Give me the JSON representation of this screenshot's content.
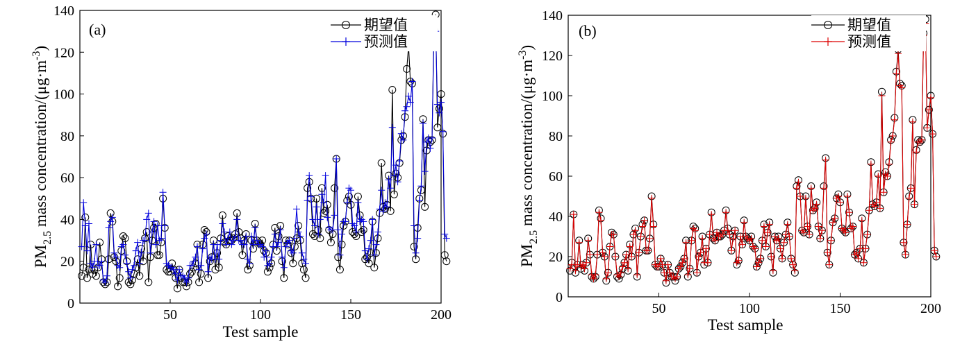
{
  "chart_data": [
    {
      "type": "line",
      "panel_label": "(a)",
      "xlabel": "Test sample",
      "ylabel_parts": {
        "base": "PM",
        "sub": "2.5",
        "rest": " mass concentration/(μg·m",
        "sup": "-3",
        "close": ")"
      },
      "xlim": [
        0,
        200
      ],
      "ylim": [
        0,
        140
      ],
      "xticks": [
        50,
        100,
        150,
        200
      ],
      "yticks": [
        0,
        20,
        40,
        60,
        80,
        100,
        120,
        140
      ],
      "grid": false,
      "legend_position": "top-right",
      "series": [
        {
          "name": "期望值",
          "color": "#000000",
          "marker": "circle",
          "values": [
            13,
            17,
            41,
            12,
            16,
            28,
            14,
            16,
            13,
            17,
            29,
            21,
            10,
            9,
            10,
            21,
            43,
            39,
            22,
            20,
            8,
            12,
            25,
            32,
            31,
            20,
            10,
            9,
            11,
            14,
            17,
            21,
            13,
            26,
            20,
            31,
            34,
            10,
            22,
            30,
            36,
            38,
            23,
            23,
            29,
            50,
            36,
            16,
            15,
            15,
            19,
            16,
            12,
            7,
            16,
            12,
            10,
            10,
            8,
            10,
            14,
            15,
            17,
            19,
            28,
            10,
            14,
            28,
            35,
            34,
            12,
            20,
            22,
            30,
            16,
            24,
            17,
            31,
            42,
            29,
            28,
            32,
            30,
            30,
            31,
            33,
            43,
            34,
            31,
            23,
            30,
            33,
            16,
            18,
            30,
            26,
            38,
            30,
            29,
            28,
            30,
            25,
            24,
            15,
            17,
            19,
            28,
            36,
            25,
            32,
            37,
            20,
            12,
            30,
            28,
            30,
            24,
            19,
            27,
            31,
            37,
            30,
            19,
            16,
            12,
            55,
            58,
            50,
            33,
            32,
            50,
            35,
            31,
            55,
            43,
            44,
            47,
            35,
            29,
            33,
            55,
            69,
            22,
            16,
            28,
            37,
            39,
            49,
            51,
            47,
            34,
            33,
            32,
            51,
            42,
            34,
            35,
            21,
            22,
            19,
            24,
            39,
            17,
            24,
            31,
            43,
            67,
            46,
            45,
            47,
            61,
            44,
            102,
            52,
            62,
            60,
            67,
            78,
            80,
            89,
            112,
            123,
            106,
            105,
            27,
            21,
            36,
            50,
            54,
            88,
            46,
            73,
            78,
            77,
            78,
            131,
            138,
            84,
            93,
            100,
            81,
            23,
            20
          ],
          "x_start": 1
        },
        {
          "name": "预测值",
          "color": "#0000dd",
          "marker": "plus",
          "values": [
            27,
            48,
            37,
            25,
            38,
            19,
            17,
            20,
            28,
            18,
            18,
            20,
            11,
            10,
            13,
            36,
            39,
            41,
            24,
            22,
            18,
            17,
            27,
            28,
            23,
            19,
            15,
            12,
            16,
            18,
            25,
            29,
            19,
            24,
            30,
            30,
            40,
            43,
            24,
            34,
            39,
            28,
            37,
            30,
            31,
            53,
            37,
            19,
            18,
            17,
            17,
            16,
            14,
            11,
            16,
            13,
            13,
            12,
            10,
            12,
            18,
            18,
            20,
            22,
            27,
            16,
            18,
            26,
            31,
            33,
            15,
            22,
            21,
            28,
            21,
            28,
            21,
            30,
            38,
            34,
            28,
            31,
            34,
            28,
            30,
            32,
            40,
            30,
            30,
            28,
            28,
            32,
            21,
            19,
            32,
            28,
            36,
            30,
            28,
            28,
            27,
            22,
            25,
            18,
            19,
            22,
            27,
            33,
            27,
            29,
            35,
            22,
            17,
            27,
            29,
            30,
            25,
            24,
            31,
            45,
            34,
            32,
            24,
            21,
            19,
            49,
            61,
            51,
            40,
            37,
            46,
            33,
            40,
            52,
            48,
            61,
            41,
            36,
            35,
            35,
            42,
            69,
            35,
            23,
            33,
            39,
            39,
            48,
            55,
            54,
            38,
            37,
            34,
            48,
            39,
            40,
            39,
            25,
            21,
            26,
            30,
            40,
            23,
            28,
            34,
            45,
            54,
            44,
            48,
            46,
            59,
            55,
            84,
            61,
            66,
            58,
            68,
            81,
            78,
            92,
            94,
            99,
            96,
            106,
            37,
            24,
            31,
            49,
            56,
            86,
            63,
            77,
            79,
            74,
            79,
            126,
            130,
            95,
            91,
            96,
            82,
            33,
            31
          ],
          "x_start": 1
        }
      ]
    },
    {
      "type": "line",
      "panel_label": "(b)",
      "xlabel": "Test sample",
      "ylabel_parts": {
        "base": "PM",
        "sub": "2.5",
        "rest": " mass concentration/(μg·m",
        "sup": "-3",
        "close": ")"
      },
      "xlim": [
        0,
        200
      ],
      "ylim": [
        0,
        140
      ],
      "xticks": [
        50,
        100,
        150,
        200
      ],
      "yticks": [
        0,
        20,
        40,
        60,
        80,
        100,
        120,
        140
      ],
      "grid": false,
      "legend_position": "top-right",
      "series": [
        {
          "name": "期望值",
          "color": "#000000",
          "marker": "circle",
          "values": [
            13,
            17,
            41,
            12,
            16,
            28,
            14,
            16,
            13,
            17,
            29,
            21,
            10,
            9,
            10,
            21,
            43,
            39,
            22,
            20,
            8,
            12,
            25,
            32,
            31,
            20,
            10,
            9,
            11,
            14,
            17,
            21,
            13,
            26,
            20,
            31,
            34,
            10,
            22,
            30,
            36,
            38,
            23,
            23,
            29,
            50,
            36,
            16,
            15,
            15,
            19,
            16,
            12,
            7,
            16,
            12,
            10,
            10,
            8,
            10,
            14,
            15,
            17,
            19,
            28,
            10,
            14,
            28,
            35,
            34,
            12,
            20,
            22,
            30,
            16,
            24,
            17,
            31,
            42,
            29,
            28,
            32,
            30,
            30,
            31,
            33,
            43,
            34,
            31,
            23,
            30,
            33,
            16,
            18,
            30,
            26,
            38,
            30,
            29,
            28,
            30,
            25,
            24,
            15,
            17,
            19,
            28,
            36,
            25,
            32,
            37,
            20,
            12,
            30,
            28,
            30,
            24,
            19,
            27,
            31,
            37,
            30,
            19,
            16,
            12,
            55,
            58,
            50,
            33,
            32,
            50,
            35,
            31,
            55,
            43,
            44,
            47,
            35,
            29,
            33,
            55,
            69,
            22,
            16,
            28,
            37,
            39,
            49,
            51,
            47,
            34,
            33,
            32,
            51,
            42,
            34,
            35,
            21,
            22,
            19,
            24,
            39,
            17,
            24,
            31,
            43,
            67,
            46,
            45,
            47,
            61,
            44,
            102,
            52,
            62,
            60,
            67,
            78,
            80,
            89,
            112,
            123,
            106,
            105,
            27,
            21,
            36,
            50,
            54,
            88,
            46,
            73,
            78,
            77,
            78,
            131,
            138,
            84,
            93,
            100,
            81,
            23,
            20
          ],
          "x_start": 1
        },
        {
          "name": "预测值",
          "color": "#dd0000",
          "marker": "plus",
          "values": [
            14,
            16,
            41,
            13,
            16,
            27,
            15,
            16,
            14,
            17,
            28,
            21,
            11,
            9,
            11,
            21,
            42,
            38,
            22,
            20,
            9,
            12,
            25,
            31,
            31,
            20,
            11,
            10,
            12,
            15,
            17,
            21,
            14,
            25,
            20,
            31,
            33,
            11,
            22,
            30,
            35,
            38,
            23,
            23,
            29,
            49,
            35,
            16,
            15,
            15,
            19,
            16,
            12,
            8,
            16,
            12,
            10,
            10,
            9,
            10,
            14,
            15,
            17,
            19,
            27,
            11,
            14,
            28,
            34,
            33,
            12,
            20,
            22,
            29,
            17,
            24,
            17,
            31,
            41,
            29,
            28,
            32,
            30,
            30,
            31,
            33,
            42,
            33,
            31,
            23,
            29,
            33,
            17,
            18,
            30,
            26,
            37,
            30,
            29,
            28,
            29,
            25,
            24,
            15,
            17,
            19,
            28,
            35,
            25,
            32,
            36,
            20,
            13,
            30,
            28,
            29,
            24,
            19,
            27,
            31,
            36,
            30,
            19,
            16,
            13,
            54,
            57,
            50,
            33,
            32,
            49,
            35,
            31,
            54,
            43,
            44,
            46,
            35,
            29,
            33,
            54,
            68,
            22,
            16,
            28,
            37,
            39,
            49,
            50,
            47,
            34,
            33,
            32,
            50,
            42,
            34,
            35,
            21,
            22,
            19,
            24,
            38,
            17,
            24,
            31,
            43,
            66,
            46,
            45,
            47,
            60,
            44,
            100,
            52,
            61,
            60,
            66,
            77,
            80,
            88,
            111,
            121,
            105,
            104,
            27,
            21,
            36,
            49,
            54,
            87,
            46,
            72,
            77,
            77,
            78,
            130,
            136,
            84,
            93,
            99,
            81,
            23,
            20
          ],
          "x_start": 1
        }
      ]
    }
  ]
}
